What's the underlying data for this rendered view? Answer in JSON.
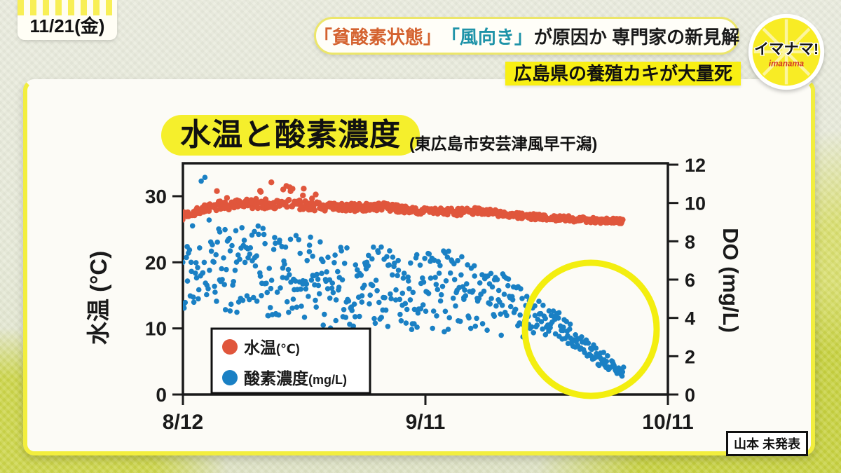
{
  "header": {
    "date_badge": "11/21(金)",
    "headline": {
      "part1": "「貧酸素状態」",
      "part1_color": "#d4622f",
      "part2": "「風向き」",
      "part2_color": "#1e93a8",
      "part3": "が原因か 専門家の新見解",
      "part3_color": "#1a1a1a"
    },
    "sub_banner": "広島県の養殖カキが大量死",
    "sub_banner_bg": "#f8ef13",
    "logo": {
      "main": "イマナマ!",
      "sub": "imanama"
    }
  },
  "chart_data": {
    "type": "scatter",
    "title": "水温と酸素濃度",
    "subtitle": "(東広島市安芸津風早干潟)",
    "x_axis": {
      "tick_labels": [
        "8/12",
        "9/11",
        "10/11"
      ],
      "tick_days": [
        0,
        30,
        60
      ],
      "day_range": [
        0,
        60
      ]
    },
    "y_left": {
      "label": "水温 (°C)",
      "ticks": [
        0,
        10,
        20,
        30
      ],
      "range": [
        0,
        35
      ]
    },
    "y_right": {
      "label": "DO (mg/L)",
      "ticks": [
        0,
        2,
        4,
        6,
        8,
        10,
        12
      ],
      "range": [
        0,
        12
      ]
    },
    "legend": [
      {
        "label": "水温",
        "unit": "(℃)",
        "color": "#e0563c"
      },
      {
        "label": "酸素濃度",
        "unit": "(mg/L)",
        "color": "#1a80c4"
      }
    ],
    "series": [
      {
        "name": "水温(℃)",
        "axis": "left",
        "color": "#e0563c",
        "dot_radius": 4.2,
        "points_per_day": 10,
        "seed": 7,
        "anchors": [
          [
            0,
            27.0,
            0.55
          ],
          [
            2,
            27.9,
            0.6
          ],
          [
            4,
            28.5,
            0.65
          ],
          [
            7,
            28.7,
            0.75
          ],
          [
            10,
            28.9,
            0.8
          ],
          [
            13,
            28.8,
            0.75
          ],
          [
            16,
            28.5,
            0.65
          ],
          [
            19,
            28.3,
            0.6
          ],
          [
            22,
            28.3,
            0.6
          ],
          [
            25,
            28.4,
            0.55
          ],
          [
            28,
            27.9,
            0.5
          ],
          [
            31,
            27.7,
            0.5
          ],
          [
            34,
            27.6,
            0.5
          ],
          [
            37,
            27.8,
            0.5
          ],
          [
            40,
            27.2,
            0.45
          ],
          [
            43,
            26.9,
            0.45
          ],
          [
            46,
            26.7,
            0.4
          ],
          [
            49,
            26.5,
            0.4
          ],
          [
            52,
            26.3,
            0.4
          ],
          [
            54.5,
            26.2,
            0.4
          ]
        ],
        "spikes": {
          "day_range": [
            3,
            17
          ],
          "probability": 0.13,
          "max_extra": 2.6
        }
      },
      {
        "name": "酸素濃度(mg/L)",
        "axis": "right",
        "color": "#1a80c4",
        "dot_radius": 3.8,
        "points_per_day": 10,
        "seed": 13,
        "anchors": [
          [
            0,
            6.6,
            2.3
          ],
          [
            1.5,
            7.6,
            3.0
          ],
          [
            2.5,
            8.6,
            3.3
          ],
          [
            3.5,
            6.8,
            2.4
          ],
          [
            6,
            6.4,
            2.2
          ],
          [
            9,
            6.7,
            2.3
          ],
          [
            12,
            5.9,
            2.3
          ],
          [
            15,
            6.2,
            2.2
          ],
          [
            18,
            5.7,
            2.3
          ],
          [
            21,
            5.5,
            2.3
          ],
          [
            24,
            5.8,
            2.1
          ],
          [
            27,
            5.3,
            2.2
          ],
          [
            30,
            5.6,
            2.4
          ],
          [
            33,
            5.2,
            2.3
          ],
          [
            36,
            5.5,
            2.0
          ],
          [
            39,
            4.8,
            1.8
          ],
          [
            41,
            4.5,
            1.5
          ],
          [
            43,
            4.2,
            1.2
          ],
          [
            45,
            3.9,
            0.9
          ],
          [
            47,
            3.4,
            0.7
          ],
          [
            49,
            2.8,
            0.55
          ],
          [
            51,
            2.1,
            0.45
          ],
          [
            53,
            1.5,
            0.4
          ],
          [
            54.6,
            1.1,
            0.3
          ]
        ],
        "clamp": [
          0.3,
          12.05
        ]
      }
    ],
    "highlight_circle": {
      "day_range": [
        42,
        55
      ],
      "series": "酸素濃度(mg/L)",
      "color": "#f3ee0f"
    }
  },
  "source_label": "山本 未発表",
  "colors": {
    "accent_yellow": "#f5ef2c",
    "card_bg": "#fcfbf6",
    "temp_red": "#e0563c",
    "do_blue": "#1a80c4"
  }
}
